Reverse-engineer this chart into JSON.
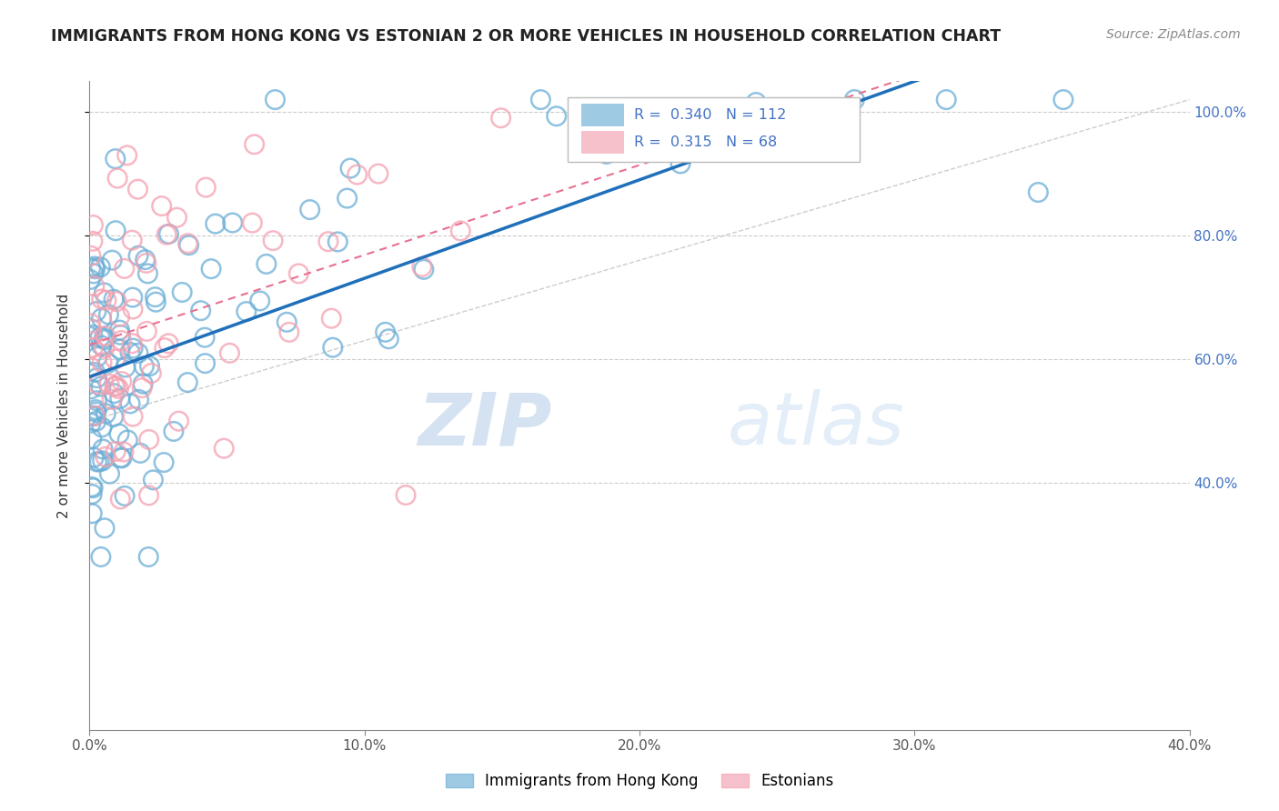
{
  "title": "IMMIGRANTS FROM HONG KONG VS ESTONIAN 2 OR MORE VEHICLES IN HOUSEHOLD CORRELATION CHART",
  "source": "Source: ZipAtlas.com",
  "ylabel": "2 or more Vehicles in Household",
  "xmin": 0.0,
  "xmax": 0.4,
  "ymin": 0.0,
  "ymax": 1.05,
  "xtick_labels": [
    "0.0%",
    "10.0%",
    "20.0%",
    "30.0%",
    "40.0%"
  ],
  "xtick_vals": [
    0.0,
    0.1,
    0.2,
    0.3,
    0.4
  ],
  "ytick_labels": [
    "40.0%",
    "60.0%",
    "80.0%",
    "100.0%"
  ],
  "ytick_vals": [
    0.4,
    0.6,
    0.8,
    1.0
  ],
  "blue_R": 0.34,
  "blue_N": 112,
  "pink_R": 0.315,
  "pink_N": 68,
  "legend_label_blue": "Immigrants from Hong Kong",
  "legend_label_pink": "Estonians",
  "blue_color": "#6baed6",
  "pink_color": "#f4a0b0",
  "blue_line_color": "#1f6fba",
  "pink_line_color": "#e87090",
  "watermark_zip": "ZIP",
  "watermark_atlas": "atlas",
  "background_color": "#ffffff",
  "grid_color": "#cccccc",
  "ytick_color": "#4472c4",
  "seed": 42
}
